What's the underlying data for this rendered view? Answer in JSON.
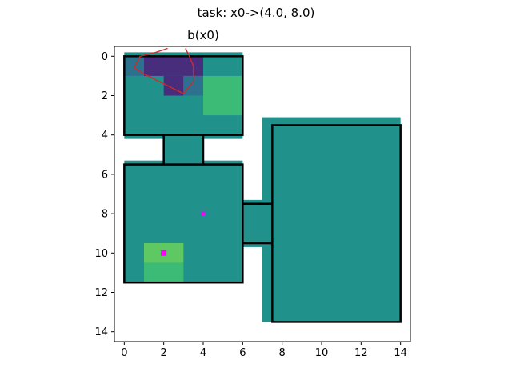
{
  "figure": {
    "suptitle": "task: x0->(4.0, 8.0)"
  },
  "chart_data": {
    "type": "heatmap",
    "title": "b(x0)",
    "xlabel": "",
    "ylabel": "",
    "xlim": [
      -0.5,
      14.5
    ],
    "ylim": [
      14.5,
      -0.5
    ],
    "y_axis_inverted": true,
    "grid": false,
    "xticks": [
      0,
      2,
      4,
      6,
      8,
      10,
      12,
      14
    ],
    "yticks": [
      0,
      2,
      4,
      6,
      8,
      10,
      12,
      14
    ],
    "colormap": "viridis",
    "colors": {
      "base": "#21918c",
      "dark": "#433e85",
      "darker": "#472d7b",
      "mid": "#2c728e",
      "bright": "#3bbb75",
      "brighter": "#5ec962",
      "trajectory": "#d62728",
      "marker": "#ff00ff",
      "wall": "#000000"
    },
    "cells": [
      {
        "x": [
          0,
          6
        ],
        "y": [
          -0.2,
          4.2
        ],
        "level": "base"
      },
      {
        "x": [
          0,
          6
        ],
        "y": [
          5.3,
          11.5
        ],
        "level": "base"
      },
      {
        "x": [
          2,
          4
        ],
        "y": [
          4,
          5.6
        ],
        "level": "base"
      },
      {
        "x": [
          6,
          7.5
        ],
        "y": [
          7.3,
          9.7
        ],
        "level": "base"
      },
      {
        "x": [
          7,
          14
        ],
        "y": [
          3.1,
          13.5
        ],
        "level": "base"
      },
      {
        "x": [
          0,
          1
        ],
        "y": [
          0,
          1
        ],
        "level": "mid"
      },
      {
        "x": [
          1,
          4
        ],
        "y": [
          0,
          1
        ],
        "level": "darker"
      },
      {
        "x": [
          2,
          3
        ],
        "y": [
          1,
          2
        ],
        "level": "darker"
      },
      {
        "x": [
          3,
          4
        ],
        "y": [
          1,
          2
        ],
        "level": "mid"
      },
      {
        "x": [
          4,
          6
        ],
        "y": [
          1,
          3
        ],
        "level": "bright"
      },
      {
        "x": [
          1,
          3
        ],
        "y": [
          9.5,
          10.5
        ],
        "level": "brighter"
      },
      {
        "x": [
          1,
          3
        ],
        "y": [
          10.5,
          11.5
        ],
        "level": "bright"
      }
    ],
    "rooms": [
      {
        "x": [
          0,
          6
        ],
        "y": [
          0,
          4
        ]
      },
      {
        "x": [
          0,
          6
        ],
        "y": [
          5.5,
          11.5
        ]
      },
      {
        "x": [
          7.5,
          14
        ],
        "y": [
          3.5,
          13.5
        ]
      }
    ],
    "connectors": [
      {
        "x": [
          2,
          2
        ],
        "y": [
          4,
          5.5
        ]
      },
      {
        "x": [
          4,
          4
        ],
        "y": [
          4,
          5.5
        ]
      },
      {
        "x": [
          6,
          7.5
        ],
        "y": [
          7.5,
          7.5
        ]
      },
      {
        "x": [
          6,
          7.5
        ],
        "y": [
          9.5,
          9.5
        ]
      }
    ],
    "trajectory": {
      "x": [
        2.2,
        1.6,
        0.8,
        0.5,
        1.0,
        2.0,
        3.0,
        3.5,
        3.5,
        3.3,
        3.1
      ],
      "y": [
        -0.4,
        -0.2,
        0.0,
        0.6,
        0.9,
        1.4,
        1.9,
        1.3,
        0.5,
        0.0,
        -0.4
      ]
    },
    "markers": [
      {
        "x": 4.0,
        "y": 8.0,
        "size": "small"
      },
      {
        "x": 2.0,
        "y": 10.0,
        "size": "large"
      }
    ]
  }
}
